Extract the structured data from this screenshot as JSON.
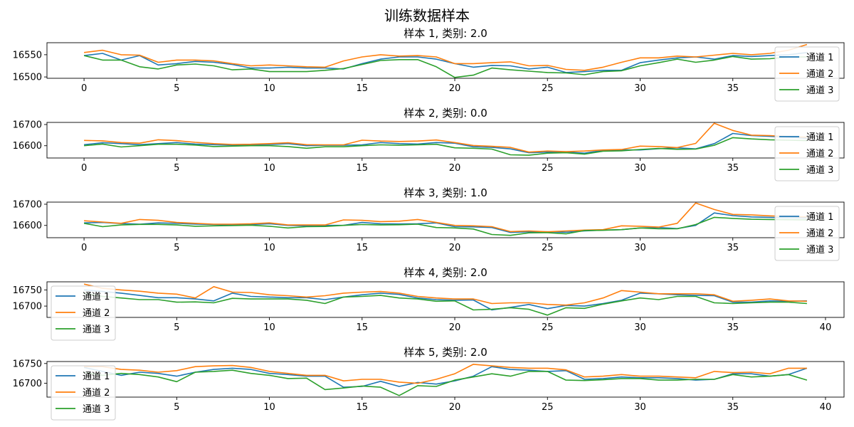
{
  "figure_title": "训练数据样本",
  "chart_data": [
    {
      "type": "line",
      "title": "样本 1, 类别: 2.0",
      "xlim": [
        -2,
        41
      ],
      "ylim": [
        16497,
        16577
      ],
      "xticks": [
        0,
        5,
        10,
        15,
        20,
        25,
        30,
        35
      ],
      "xtick_labels": [
        "0",
        "5",
        "10",
        "15",
        "20",
        "25",
        "30",
        "35"
      ],
      "yticks": [
        16500,
        16550
      ],
      "ytick_labels": [
        "16500",
        "16550"
      ],
      "legend_loc": "upper-right",
      "x": [
        0,
        1,
        2,
        3,
        4,
        5,
        6,
        7,
        8,
        9,
        10,
        11,
        12,
        13,
        14,
        15,
        16,
        17,
        18,
        19,
        20,
        21,
        22,
        23,
        24,
        25,
        26,
        27,
        28,
        29,
        30,
        31,
        32,
        33,
        34,
        35,
        36,
        37,
        38,
        39
      ],
      "series": [
        {
          "name": "通道 1",
          "color": "#1f77b4",
          "values": [
            16548,
            16553,
            16538,
            16548,
            16527,
            16530,
            16535,
            16533,
            16528,
            16520,
            16520,
            16522,
            16520,
            16520,
            16518,
            16530,
            16540,
            16545,
            16545,
            16540,
            16530,
            16522,
            16526,
            16525,
            16518,
            16522,
            16510,
            16512,
            16515,
            16515,
            16532,
            16538,
            16543,
            16545,
            16540,
            16548,
            16546,
            16548,
            16550,
            16555
          ]
        },
        {
          "name": "通道 2",
          "color": "#ff7f0e",
          "values": [
            16555,
            16560,
            16550,
            16549,
            16533,
            16538,
            16538,
            16536,
            16530,
            16525,
            16527,
            16525,
            16523,
            16522,
            16536,
            16545,
            16550,
            16547,
            16548,
            16545,
            16530,
            16530,
            16532,
            16534,
            16525,
            16526,
            16517,
            16515,
            16522,
            16533,
            16543,
            16543,
            16547,
            16545,
            16549,
            16553,
            16550,
            16553,
            16560,
            16573
          ]
        },
        {
          "name": "通道 3",
          "color": "#2ca02c",
          "values": [
            16548,
            16538,
            16538,
            16523,
            16518,
            16527,
            16529,
            16525,
            16516,
            16518,
            16512,
            16512,
            16512,
            16515,
            16519,
            16528,
            16537,
            16539,
            16539,
            16523,
            16499,
            16504,
            16520,
            16516,
            16513,
            16510,
            16509,
            16505,
            16512,
            16514,
            16525,
            16532,
            16540,
            16533,
            16538,
            16546,
            16540,
            16541,
            16545,
            16545
          ]
        }
      ]
    },
    {
      "type": "line",
      "title": "样本 2, 类别: 0.0",
      "xlim": [
        -2,
        41
      ],
      "ylim": [
        16542,
        16710
      ],
      "xticks": [
        0,
        5,
        10,
        15,
        20,
        25,
        30,
        35
      ],
      "xtick_labels": [
        "0",
        "5",
        "10",
        "15",
        "20",
        "25",
        "30",
        "35"
      ],
      "yticks": [
        16600,
        16700
      ],
      "ytick_labels": [
        "16600",
        "16700"
      ],
      "legend_loc": "upper-right",
      "x": [
        0,
        1,
        2,
        3,
        4,
        5,
        6,
        7,
        8,
        9,
        10,
        11,
        12,
        13,
        14,
        15,
        16,
        17,
        18,
        19,
        20,
        21,
        22,
        23,
        24,
        25,
        26,
        27,
        28,
        29,
        30,
        31,
        32,
        33,
        34,
        35,
        36,
        37,
        38,
        39
      ],
      "series": [
        {
          "name": "通道 1",
          "color": "#1f77b4",
          "values": [
            16605,
            16614,
            16610,
            16605,
            16610,
            16615,
            16608,
            16605,
            16603,
            16604,
            16606,
            16610,
            16600,
            16602,
            16602,
            16604,
            16615,
            16610,
            16608,
            16615,
            16612,
            16595,
            16592,
            16585,
            16567,
            16570,
            16570,
            16565,
            16578,
            16580,
            16580,
            16586,
            16590,
            16585,
            16610,
            16658,
            16648,
            16644,
            16640,
            16635
          ]
        },
        {
          "name": "通道 2",
          "color": "#ff7f0e",
          "values": [
            16625,
            16623,
            16615,
            16612,
            16628,
            16624,
            16616,
            16610,
            16606,
            16607,
            16610,
            16614,
            16605,
            16604,
            16604,
            16626,
            16622,
            16620,
            16622,
            16627,
            16615,
            16601,
            16597,
            16592,
            16570,
            16575,
            16572,
            16575,
            16580,
            16582,
            16598,
            16596,
            16591,
            16611,
            16706,
            16672,
            16650,
            16648,
            16643,
            16640
          ]
        },
        {
          "name": "通道 3",
          "color": "#2ca02c",
          "values": [
            16600,
            16608,
            16594,
            16600,
            16607,
            16607,
            16603,
            16596,
            16598,
            16600,
            16600,
            16596,
            16588,
            16595,
            16595,
            16600,
            16604,
            16602,
            16604,
            16607,
            16590,
            16588,
            16584,
            16557,
            16555,
            16565,
            16567,
            16560,
            16574,
            16576,
            16582,
            16587,
            16583,
            16584,
            16602,
            16638,
            16632,
            16628,
            16626,
            16624
          ]
        }
      ]
    },
    {
      "type": "line",
      "title": "样本 3, 类别: 1.0",
      "xlim": [
        -2,
        41
      ],
      "ylim": [
        16542,
        16710
      ],
      "xticks": [
        0,
        5,
        10,
        15,
        20,
        25,
        30,
        35
      ],
      "xtick_labels": [
        "0",
        "5",
        "10",
        "15",
        "20",
        "25",
        "30",
        "35"
      ],
      "yticks": [
        16600,
        16700
      ],
      "ytick_labels": [
        "16600",
        "16700"
      ],
      "legend_loc": "upper-right",
      "x": [
        0,
        1,
        2,
        3,
        4,
        5,
        6,
        7,
        8,
        9,
        10,
        11,
        12,
        13,
        14,
        15,
        16,
        17,
        18,
        19,
        20,
        21,
        22,
        23,
        24,
        25,
        26,
        27,
        28,
        29,
        30,
        31,
        32,
        33,
        34,
        35,
        36,
        37,
        38,
        39
      ],
      "series": [
        {
          "name": "通道 1",
          "color": "#1f77b4",
          "values": [
            16612,
            16614,
            16609,
            16606,
            16612,
            16610,
            16606,
            16604,
            16602,
            16604,
            16608,
            16600,
            16598,
            16600,
            16600,
            16614,
            16608,
            16607,
            16608,
            16612,
            16594,
            16593,
            16590,
            16567,
            16570,
            16570,
            16568,
            16574,
            16578,
            16580,
            16588,
            16590,
            16585,
            16600,
            16659,
            16646,
            16640,
            16638,
            16636,
            16635
          ]
        },
        {
          "name": "通道 2",
          "color": "#ff7f0e",
          "values": [
            16622,
            16616,
            16610,
            16628,
            16624,
            16614,
            16610,
            16606,
            16606,
            16608,
            16612,
            16602,
            16602,
            16602,
            16626,
            16624,
            16618,
            16620,
            16628,
            16614,
            16600,
            16598,
            16594,
            16571,
            16574,
            16570,
            16574,
            16578,
            16580,
            16598,
            16596,
            16592,
            16610,
            16706,
            16675,
            16652,
            16650,
            16645,
            16642,
            16640
          ]
        },
        {
          "name": "通道 3",
          "color": "#2ca02c",
          "values": [
            16610,
            16594,
            16602,
            16605,
            16605,
            16602,
            16596,
            16598,
            16599,
            16601,
            16596,
            16588,
            16594,
            16595,
            16600,
            16604,
            16602,
            16603,
            16606,
            16590,
            16588,
            16583,
            16557,
            16553,
            16565,
            16566,
            16560,
            16576,
            16577,
            16580,
            16588,
            16584,
            16584,
            16604,
            16638,
            16633,
            16629,
            16628,
            16627,
            16626
          ]
        }
      ]
    },
    {
      "type": "line",
      "title": "样本 4, 类别: 2.0",
      "xlim": [
        -2,
        41
      ],
      "ylim": [
        16665,
        16775
      ],
      "xticks": [
        5,
        10,
        15,
        20,
        25,
        30,
        35,
        40
      ],
      "xtick_labels": [
        "5",
        "10",
        "15",
        "20",
        "25",
        "30",
        "35",
        "40"
      ],
      "yticks": [
        16700,
        16750
      ],
      "ytick_labels": [
        "16700",
        "16750"
      ],
      "legend_loc": "upper-left",
      "x": [
        0,
        1,
        2,
        3,
        4,
        5,
        6,
        7,
        8,
        9,
        10,
        11,
        12,
        13,
        14,
        15,
        16,
        17,
        18,
        19,
        20,
        21,
        22,
        23,
        24,
        25,
        26,
        27,
        28,
        29,
        30,
        31,
        32,
        33,
        34,
        35,
        36,
        37,
        38,
        39
      ],
      "series": [
        {
          "name": "通道 1",
          "color": "#1f77b4",
          "values": [
            16750,
            16745,
            16740,
            16733,
            16726,
            16726,
            16722,
            16716,
            16740,
            16730,
            16728,
            16726,
            16726,
            16720,
            16728,
            16735,
            16740,
            16736,
            16725,
            16720,
            16718,
            16719,
            16688,
            16696,
            16705,
            16692,
            16702,
            16700,
            16708,
            16718,
            16740,
            16738,
            16735,
            16733,
            16732,
            16712,
            16712,
            16716,
            16715,
            16716
          ]
        },
        {
          "name": "通道 2",
          "color": "#ff7f0e",
          "values": [
            16768,
            16755,
            16750,
            16746,
            16740,
            16737,
            16725,
            16760,
            16743,
            16742,
            16735,
            16732,
            16728,
            16732,
            16740,
            16743,
            16745,
            16740,
            16730,
            16725,
            16722,
            16722,
            16708,
            16710,
            16710,
            16705,
            16703,
            16710,
            16725,
            16748,
            16743,
            16738,
            16738,
            16738,
            16735,
            16715,
            16718,
            16722,
            16716,
            16715
          ]
        },
        {
          "name": "通道 3",
          "color": "#2ca02c",
          "values": [
            16740,
            16730,
            16725,
            16720,
            16720,
            16712,
            16713,
            16710,
            16724,
            16722,
            16722,
            16722,
            16718,
            16708,
            16728,
            16730,
            16733,
            16725,
            16722,
            16715,
            16716,
            16688,
            16690,
            16695,
            16690,
            16672,
            16695,
            16693,
            16706,
            16716,
            16725,
            16720,
            16730,
            16730,
            16710,
            16708,
            16710,
            16712,
            16712,
            16708
          ]
        }
      ]
    },
    {
      "type": "line",
      "title": "样本 5, 类别: 2.0",
      "xlim": [
        -2,
        41
      ],
      "ylim": [
        16665,
        16755
      ],
      "xticks": [
        5,
        10,
        15,
        20,
        25,
        30,
        35,
        40
      ],
      "xtick_labels": [
        "5",
        "10",
        "15",
        "20",
        "25",
        "30",
        "35",
        "40"
      ],
      "yticks": [
        16700,
        16750
      ],
      "ytick_labels": [
        "16700",
        "16750"
      ],
      "legend_loc": "upper-left",
      "x": [
        0,
        1,
        2,
        3,
        4,
        5,
        6,
        7,
        8,
        9,
        10,
        11,
        12,
        13,
        14,
        15,
        16,
        17,
        18,
        19,
        20,
        21,
        22,
        23,
        24,
        25,
        26,
        27,
        28,
        29,
        30,
        31,
        32,
        33,
        34,
        35,
        36,
        37,
        38,
        39
      ],
      "series": [
        {
          "name": "通道 1",
          "color": "#1f77b4",
          "values": [
            16740,
            16730,
            16720,
            16728,
            16725,
            16718,
            16728,
            16735,
            16738,
            16735,
            16725,
            16722,
            16718,
            16718,
            16690,
            16692,
            16705,
            16692,
            16702,
            16698,
            16706,
            16718,
            16742,
            16735,
            16733,
            16730,
            16732,
            16710,
            16712,
            16716,
            16714,
            16714,
            16712,
            16708,
            16710,
            16724,
            16724,
            16718,
            16722,
            16738
          ]
        },
        {
          "name": "通道 2",
          "color": "#ff7f0e",
          "values": [
            16742,
            16742,
            16735,
            16733,
            16728,
            16732,
            16742,
            16744,
            16745,
            16740,
            16730,
            16725,
            16720,
            16720,
            16706,
            16710,
            16710,
            16703,
            16700,
            16710,
            16724,
            16748,
            16744,
            16740,
            16738,
            16738,
            16734,
            16716,
            16718,
            16722,
            16718,
            16718,
            16716,
            16714,
            16730,
            16727,
            16728,
            16724,
            16738,
            16738
          ]
        },
        {
          "name": "通道 3",
          "color": "#2ca02c",
          "values": [
            16728,
            16720,
            16725,
            16722,
            16716,
            16704,
            16728,
            16730,
            16733,
            16725,
            16720,
            16712,
            16713,
            16684,
            16688,
            16693,
            16690,
            16669,
            16694,
            16692,
            16708,
            16716,
            16724,
            16718,
            16730,
            16730,
            16708,
            16707,
            16709,
            16712,
            16712,
            16708,
            16708,
            16710,
            16710,
            16722,
            16716,
            16718,
            16722,
            16708
          ]
        }
      ]
    }
  ]
}
